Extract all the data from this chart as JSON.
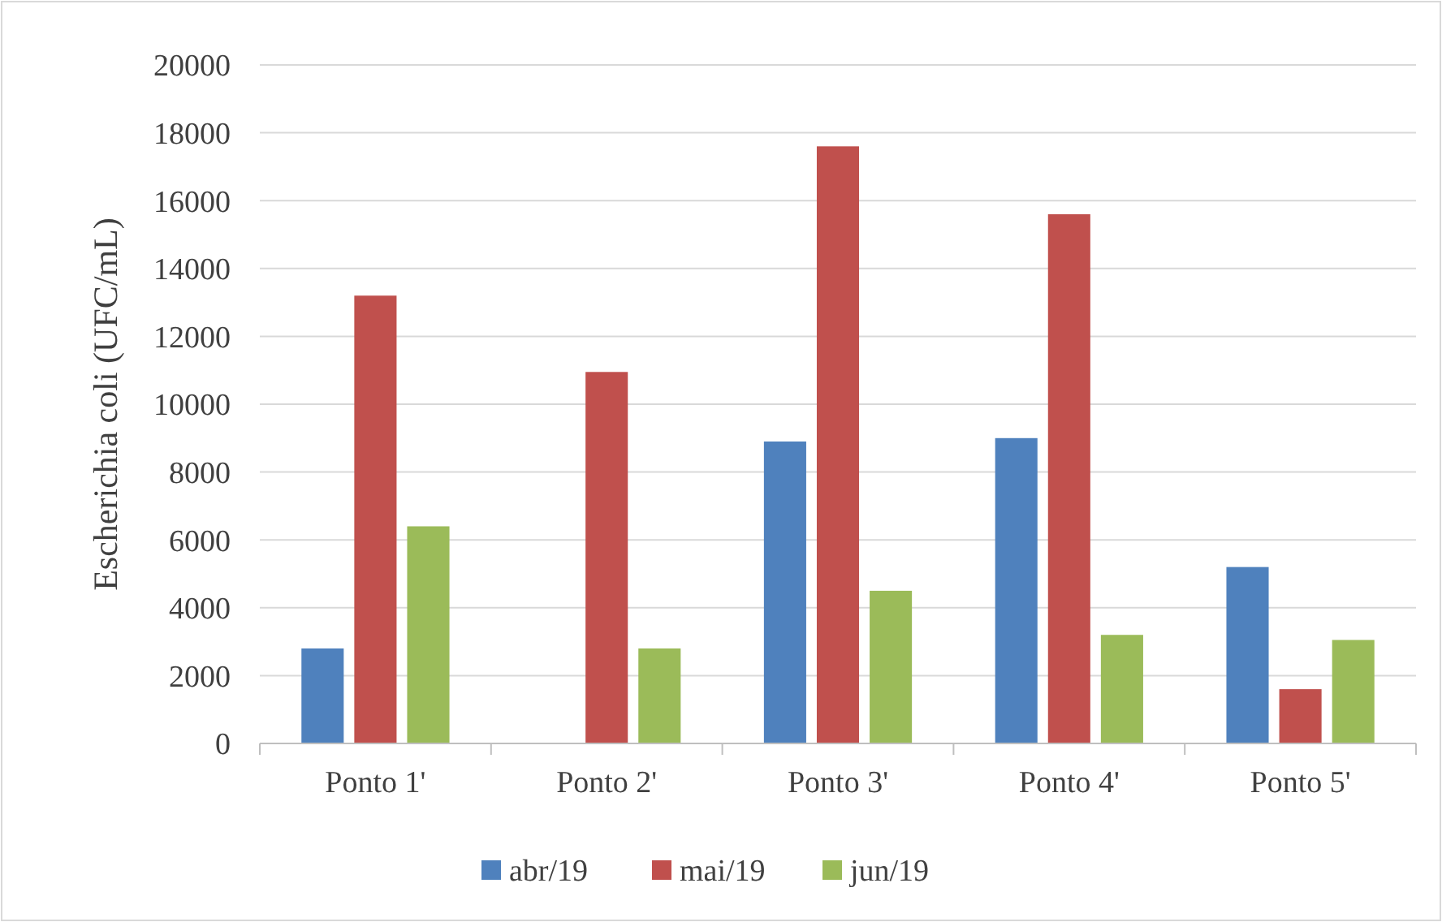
{
  "chart_data": {
    "type": "bar",
    "ylabel": "Escherichia coli (UFC/mL)",
    "categories": [
      "Ponto 1'",
      "Ponto 2'",
      "Ponto 3'",
      "Ponto 4'",
      "Ponto 5'"
    ],
    "series": [
      {
        "name": "abr/19",
        "color": "#4f81bd",
        "values": [
          2800,
          0,
          8900,
          9000,
          5200
        ]
      },
      {
        "name": "mai/19",
        "color": "#c0504d",
        "values": [
          13200,
          10950,
          17600,
          15600,
          1600
        ]
      },
      {
        "name": "jun/19",
        "color": "#9bbb59",
        "values": [
          6400,
          2800,
          4500,
          3200,
          3050
        ]
      }
    ],
    "ylim": [
      0,
      20000
    ],
    "yticks": [
      0,
      2000,
      4000,
      6000,
      8000,
      10000,
      12000,
      14000,
      16000,
      18000,
      20000
    ],
    "grid": "y",
    "legend": "bottom"
  }
}
